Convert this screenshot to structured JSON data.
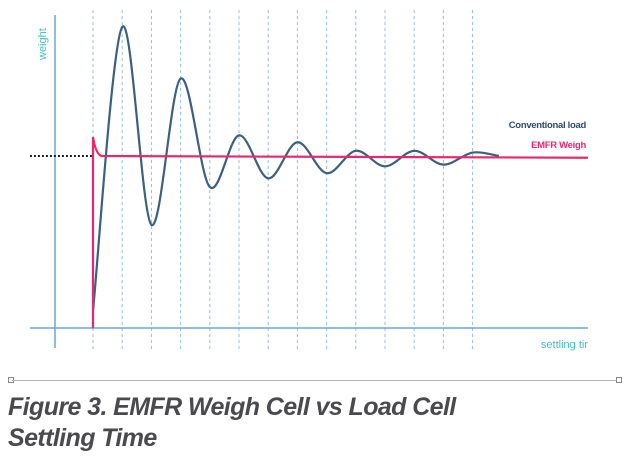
{
  "chart_data": {
    "type": "line",
    "title": "",
    "xlabel": "settling tir",
    "ylabel": "weight",
    "xlim": [
      -2.2,
      17
    ],
    "ylim": [
      -0.12,
      1.82
    ],
    "grid": {
      "vertical_dashed": true,
      "x": [
        0,
        1,
        2,
        3,
        4,
        5,
        6,
        7,
        8,
        9,
        10,
        11,
        12,
        13
      ]
    },
    "reference_level": {
      "value": 1.0,
      "x": [
        -2.16,
        0
      ],
      "style": "dotted",
      "color": "#222222"
    },
    "legend_placement": "right",
    "series": [
      {
        "name": "Conventional load",
        "color": "#3d5f80",
        "x": [
          0,
          1,
          2,
          3,
          4,
          5,
          6,
          7,
          8,
          9,
          10,
          11,
          12,
          13,
          13.9
        ],
        "y": [
          0.1,
          1.75,
          0.6,
          1.45,
          0.82,
          1.12,
          0.87,
          1.08,
          0.9,
          1.03,
          0.94,
          1.03,
          0.95,
          1.02,
          1.0
        ]
      },
      {
        "name": "EMFR Weigh",
        "color": "#e8286e",
        "x": [
          0,
          0,
          0.1,
          0.3,
          16.95
        ],
        "y": [
          0,
          1.11,
          1.03,
          1.0,
          0.99
        ]
      }
    ],
    "colors": {
      "axis": "#6aa7e0",
      "grid": "#8fbde8",
      "axis_label": "#3fbfc0"
    }
  },
  "caption": {
    "line1": "Figure 3. EMFR Weigh Cell vs Load Cell",
    "line2": "Settling Time"
  }
}
